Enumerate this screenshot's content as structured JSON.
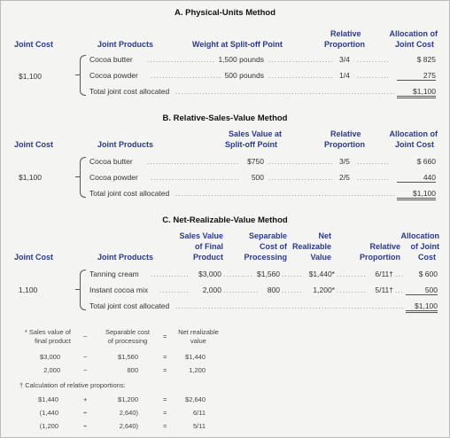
{
  "sectionA": {
    "title": "A. Physical-Units Method",
    "headers": {
      "joint_cost": "Joint Cost",
      "joint_products": "Joint Products",
      "weight": "Weight at Split-off Point",
      "relative": "Relative",
      "proportion": "Proportion",
      "allocation": "Allocation of",
      "joint_cost2": "Joint Cost"
    },
    "joint_cost_value": "$1,100",
    "rows": [
      {
        "product": "Cocoa butter",
        "measure": "1,500 pounds",
        "proportion": "3/4",
        "allocation": "$  825"
      },
      {
        "product": "Cocoa powder",
        "measure": "500 pounds",
        "proportion": "1/4",
        "allocation": "275"
      }
    ],
    "total_label": "Total joint cost allocated",
    "total_value": "$1,100"
  },
  "sectionB": {
    "title": "B. Relative-Sales-Value Method",
    "headers": {
      "joint_cost": "Joint Cost",
      "joint_products": "Joint Products",
      "sales_value": "Sales Value at",
      "split_off": "Split-off Point",
      "relative": "Relative",
      "proportion": "Proportion",
      "allocation": "Allocation of",
      "joint_cost2": "Joint Cost"
    },
    "joint_cost_value": "$1,100",
    "rows": [
      {
        "product": "Cocoa butter",
        "measure": "$750",
        "proportion": "3/5",
        "allocation": "$  660"
      },
      {
        "product": "Cocoa powder",
        "measure": "500",
        "proportion": "2/5",
        "allocation": "440"
      }
    ],
    "total_label": "Total joint cost allocated",
    "total_value": "$1,100"
  },
  "sectionC": {
    "title": "C. Net-Realizable-Value Method",
    "headers": {
      "sales_value_l1": "Sales Value",
      "sales_value_l2": "of Final",
      "sales_value_l3": "Product",
      "separable_l1": "Separable",
      "separable_l2": "Cost of",
      "separable_l3": "Processing",
      "net_l1": "Net",
      "net_l2": "Realizable",
      "net_l3": "Value",
      "relative_l1": "Relative",
      "relative_l2": "Proportion",
      "allocation_l1": "Allocation",
      "allocation_l2": "of Joint",
      "allocation_l3": "Cost",
      "joint_cost": "Joint Cost",
      "joint_products": "Joint Products"
    },
    "joint_cost_value": "1,100",
    "rows": [
      {
        "product": "Tanning cream",
        "sales": "$3,000",
        "separable": "$1,560",
        "nrv": "$1,440*",
        "proportion": "6/11†",
        "allocation": "$  600"
      },
      {
        "product": "Instant cocoa mix",
        "sales": "2,000",
        "separable": "800",
        "nrv": "1,200*",
        "proportion": "5/11†",
        "allocation": "500"
      }
    ],
    "total_label": "Total joint cost allocated",
    "total_value": "$1,100"
  },
  "footnotes": {
    "star_head": {
      "c1a": "* Sales value of",
      "c1b": "final product",
      "op": "−",
      "c2a": "Separable cost",
      "c2b": "of processing",
      "eq": "=",
      "c3a": "Net realizable",
      "c3b": "value"
    },
    "star_rows": [
      {
        "a": "$3,000",
        "op": "−",
        "b": "$1,560",
        "eq": "=",
        "c": "$1,440"
      },
      {
        "a": "2,000",
        "op": "−",
        "b": "800",
        "eq": "=",
        "c": "1,200"
      }
    ],
    "dagger_title": "† Calculation of relative proportions:",
    "dagger_rows": [
      {
        "a": "$1,440",
        "op": "+",
        "b": "$1,200",
        "eq": "=",
        "c": "$2,640"
      },
      {
        "a": "(1,440",
        "op": "÷",
        "b": "2,640)",
        "eq": "=",
        "c": "6/11"
      },
      {
        "a": "(1,200",
        "op": "÷",
        "b": "2,640)",
        "eq": "=",
        "c": "5/11"
      }
    ]
  }
}
